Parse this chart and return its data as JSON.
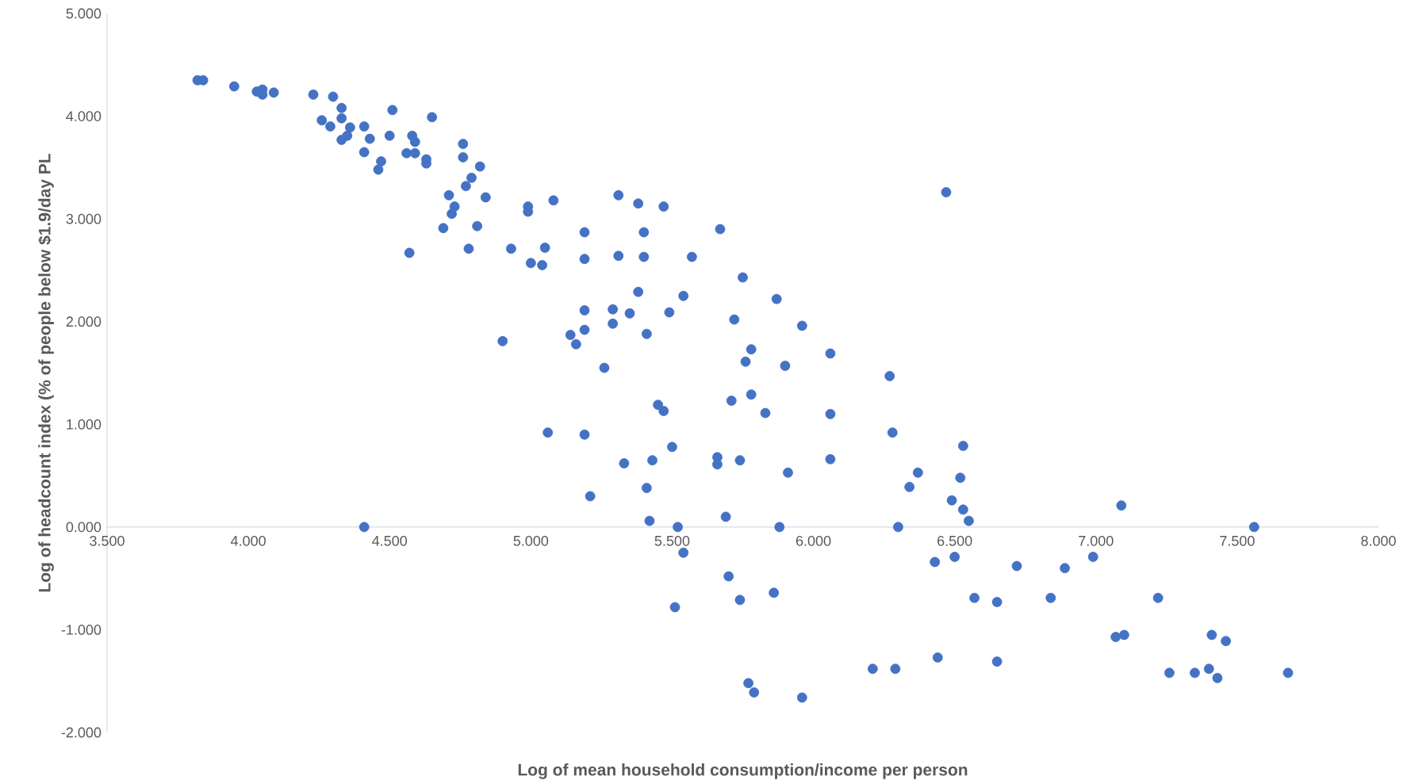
{
  "chart_data": {
    "type": "scatter",
    "xlabel": "Log of mean household consumption/income per person",
    "ylabel": "Log of headcount index (% of people below $1.9/day PL",
    "color": "#4472c4",
    "xlim": [
      3.5,
      8.0
    ],
    "ylim": [
      -2.0,
      5.0
    ],
    "xticks": [
      {
        "value": 3.5,
        "label": "3.500"
      },
      {
        "value": 4.0,
        "label": "4.000"
      },
      {
        "value": 4.5,
        "label": "4.500"
      },
      {
        "value": 5.0,
        "label": "5.000"
      },
      {
        "value": 5.5,
        "label": "5.500"
      },
      {
        "value": 6.0,
        "label": "6.000"
      },
      {
        "value": 6.5,
        "label": "6.500"
      },
      {
        "value": 7.0,
        "label": "7.000"
      },
      {
        "value": 7.5,
        "label": "7.500"
      },
      {
        "value": 8.0,
        "label": "8.000"
      }
    ],
    "yticks": [
      {
        "value": -2.0,
        "label": "-2.000"
      },
      {
        "value": -1.0,
        "label": "-1.000"
      },
      {
        "value": 0.0,
        "label": "0.000"
      },
      {
        "value": 1.0,
        "label": "1.000"
      },
      {
        "value": 2.0,
        "label": "2.000"
      },
      {
        "value": 3.0,
        "label": "3.000"
      },
      {
        "value": 4.0,
        "label": "4.000"
      },
      {
        "value": 5.0,
        "label": "5.000"
      }
    ],
    "x": [
      3.82,
      3.84,
      3.95,
      4.03,
      4.05,
      4.05,
      4.09,
      4.23,
      4.3,
      4.26,
      4.29,
      4.33,
      4.33,
      4.33,
      4.36,
      4.35,
      4.41,
      4.43,
      4.41,
      4.51,
      4.5,
      4.65,
      4.58,
      4.59,
      4.56,
      4.59,
      4.47,
      4.46,
      4.63,
      4.63,
      4.76,
      4.76,
      4.82,
      4.79,
      4.77,
      4.71,
      4.73,
      4.72,
      4.69,
      4.81,
      4.84,
      4.57,
      4.78,
      4.93,
      4.99,
      4.99,
      5.08,
      5.0,
      5.04,
      5.05,
      5.19,
      5.19,
      5.31,
      5.38,
      5.47,
      5.4,
      5.31,
      5.4,
      5.67,
      5.57,
      5.75,
      5.38,
      5.54,
      5.87,
      5.29,
      5.35,
      5.49,
      5.19,
      5.72,
      5.29,
      5.19,
      5.14,
      5.16,
      5.41,
      5.96,
      4.9,
      5.78,
      5.76,
      5.9,
      6.06,
      5.26,
      6.27,
      5.45,
      5.47,
      5.78,
      5.71,
      5.83,
      6.06,
      5.06,
      5.19,
      6.28,
      6.53,
      5.5,
      5.66,
      5.66,
      5.74,
      5.43,
      5.33,
      6.06,
      5.91,
      6.37,
      6.52,
      5.41,
      6.34,
      5.21,
      6.49,
      6.53,
      6.55,
      7.09,
      5.42,
      5.69,
      4.41,
      5.52,
      5.88,
      6.3,
      7.56,
      5.54,
      6.43,
      6.5,
      6.72,
      6.89,
      6.99,
      5.7,
      6.57,
      6.65,
      5.86,
      5.74,
      6.84,
      7.22,
      5.51,
      7.07,
      7.1,
      7.41,
      7.46,
      6.44,
      6.65,
      6.21,
      6.29,
      7.26,
      7.35,
      7.4,
      7.43,
      7.68,
      5.77,
      5.79,
      5.96,
      6.47
    ],
    "values": [
      4.35,
      4.35,
      4.29,
      4.24,
      4.26,
      4.21,
      4.23,
      4.21,
      4.19,
      3.96,
      3.9,
      4.08,
      3.98,
      3.77,
      3.89,
      3.81,
      3.9,
      3.78,
      3.65,
      4.06,
      3.81,
      3.99,
      3.81,
      3.75,
      3.64,
      3.64,
      3.56,
      3.48,
      3.58,
      3.54,
      3.73,
      3.6,
      3.51,
      3.4,
      3.32,
      3.23,
      3.12,
      3.05,
      2.91,
      2.93,
      3.21,
      2.67,
      2.71,
      2.71,
      3.07,
      3.12,
      3.18,
      2.57,
      2.55,
      2.72,
      2.87,
      2.61,
      3.23,
      3.15,
      3.12,
      2.87,
      2.64,
      2.63,
      2.9,
      2.63,
      2.43,
      2.29,
      2.25,
      2.22,
      2.12,
      2.08,
      2.09,
      2.11,
      2.02,
      1.98,
      1.92,
      1.87,
      1.78,
      1.88,
      1.96,
      1.81,
      1.73,
      1.61,
      1.57,
      1.69,
      1.55,
      1.47,
      1.19,
      1.13,
      1.29,
      1.23,
      1.11,
      1.1,
      0.92,
      0.9,
      0.92,
      0.79,
      0.78,
      0.68,
      0.61,
      0.65,
      0.65,
      0.62,
      0.66,
      0.53,
      0.53,
      0.48,
      0.38,
      0.39,
      0.3,
      0.26,
      0.17,
      0.06,
      0.21,
      0.06,
      0.1,
      0.0,
      0.0,
      0.0,
      0.0,
      0.0,
      -0.25,
      -0.34,
      -0.29,
      -0.38,
      -0.4,
      -0.29,
      -0.48,
      -0.69,
      -0.73,
      -0.64,
      -0.71,
      -0.69,
      -0.69,
      -0.78,
      -1.07,
      -1.05,
      -1.05,
      -1.11,
      -1.27,
      -1.31,
      -1.38,
      -1.38,
      -1.42,
      -1.42,
      -1.38,
      -1.47,
      -1.42,
      -1.52,
      -1.61,
      -1.66,
      3.26
    ]
  }
}
